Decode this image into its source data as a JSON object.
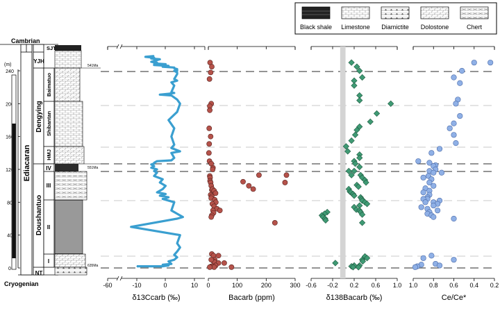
{
  "legend": {
    "items": [
      {
        "label": "Black shale",
        "pattern": "black-shale"
      },
      {
        "label": "Limestone",
        "pattern": "limestone"
      },
      {
        "label": "Diamictite",
        "pattern": "diamictite"
      },
      {
        "label": "Dolostone",
        "pattern": "dolostone"
      },
      {
        "label": "Chert",
        "pattern": "chert"
      }
    ]
  },
  "strat": {
    "periods": {
      "top": "Cambrian",
      "main": "Ediacaran",
      "bottom": "Cryogenian"
    },
    "formations": [
      "SJT",
      "YJH",
      "Dengying",
      "Doushantuo",
      "NT"
    ],
    "members": [
      "Baimatuo",
      "Shibantan",
      "HMJ",
      "IV",
      "III",
      "II",
      "I"
    ],
    "ages": [
      "541Ma",
      "551Ma",
      "635Ma"
    ],
    "height_unit": "(m)",
    "height_ticks": [
      "0",
      "40",
      "80",
      "120",
      "160",
      "200",
      "240"
    ]
  },
  "colors": {
    "carbon": "#3a9fd0",
    "ba": "#b5524a",
    "ba138": "#3f9a74",
    "ce": "#8fb0e6",
    "band": "#d4d4d4"
  },
  "chart_data": [
    {
      "type": "line",
      "xlabel": "δ13Ccarb (‰)",
      "xlim": [
        -60,
        10
      ],
      "axis_break": true,
      "xticks": [
        "-60",
        "-10",
        "0",
        "10"
      ],
      "ylim": [
        0,
        250
      ],
      "x": [
        -10,
        -8,
        -6,
        -3,
        -1,
        1,
        -1,
        2,
        1,
        3,
        4,
        3,
        4,
        5,
        4,
        5,
        -12,
        4,
        6,
        2,
        3,
        -1,
        1,
        -2,
        0,
        -3,
        -1,
        0,
        -2,
        -1,
        -4,
        -3,
        -4,
        -3,
        -5,
        -4,
        -5,
        -4,
        -4,
        -3,
        2,
        3,
        2,
        5,
        2,
        3,
        2,
        3,
        1,
        4,
        5,
        4,
        2,
        -2,
        1,
        3,
        2,
        3,
        2,
        4,
        3,
        4,
        4,
        3,
        4,
        4,
        3,
        3,
        -1,
        1,
        -4,
        0,
        -4,
        -3,
        -5,
        -4,
        -3,
        -2,
        -5,
        -4,
        -7,
        -4
      ],
      "y": [
        2,
        2,
        2,
        2,
        2,
        3,
        4,
        5,
        8,
        10,
        13,
        16,
        20,
        25,
        30,
        40,
        50,
        60,
        62,
        70,
        80,
        84,
        86,
        88,
        90,
        92,
        96,
        100,
        104,
        108,
        112,
        116,
        118,
        120,
        122,
        124,
        126,
        127,
        128,
        130,
        131,
        134,
        140,
        142,
        146,
        150,
        160,
        170,
        180,
        190,
        200,
        205,
        210,
        211,
        212,
        213,
        214,
        222,
        226,
        228,
        230,
        236,
        238,
        240,
        240,
        242,
        243,
        244,
        245,
        246,
        247,
        248,
        249,
        250,
        251,
        252,
        253,
        254,
        255,
        256,
        257,
        258
      ]
    },
    {
      "type": "scatter",
      "xlabel": "Bacarb (ppm)",
      "xlim": [
        0,
        300
      ],
      "xticks": [
        "0",
        "100",
        "200",
        "300"
      ],
      "x": [
        6,
        12,
        8,
        4,
        10,
        5,
        5,
        3,
        8,
        3,
        2,
        4,
        10,
        16,
        5,
        6,
        6,
        8,
        10,
        12,
        14,
        20,
        25,
        8,
        12,
        10,
        22,
        26,
        14,
        20,
        30,
        40,
        16,
        18,
        12,
        10,
        120,
        140,
        155,
        175,
        265,
        270,
        15,
        230,
        12,
        18,
        22,
        18,
        22,
        35,
        55,
        25,
        25,
        10,
        15,
        20,
        5,
        80,
        35,
        10
      ],
      "y": [
        250,
        245,
        238,
        230,
        200,
        197,
        192,
        170,
        160,
        151,
        140,
        130,
        127,
        122,
        112,
        110,
        106,
        104,
        100,
        95,
        96,
        94,
        91,
        89,
        87,
        85,
        83,
        80,
        78,
        75,
        72,
        70,
        70,
        67,
        64,
        62,
        105,
        100,
        96,
        113,
        104,
        113,
        120,
        55,
        17,
        15,
        10,
        8,
        7,
        6,
        6,
        3,
        3,
        2,
        2,
        1,
        1,
        1,
        15,
        10
      ]
    },
    {
      "type": "scatter",
      "xlabel": "δ138Bacarb (‰)",
      "xlim": [
        -0.6,
        1.0
      ],
      "xticks": [
        "-0.6",
        "-0.2",
        "0.2",
        "0.6",
        "1.0"
      ],
      "band_x": [
        -0.06,
        0.04
      ],
      "x": [
        0.15,
        0.25,
        0.3,
        0.35,
        0.2,
        0.2,
        0.3,
        0.3,
        0.88,
        0.62,
        0.5,
        0.3,
        0.25,
        0.22,
        0.15,
        0.05,
        0.08,
        0.3,
        0.3,
        0.2,
        0.22,
        0.3,
        0.1,
        0.15,
        0.2,
        0.32,
        0.35,
        0.4,
        0.42,
        0.25,
        0.28,
        0.1,
        0.12,
        0.14,
        0.18,
        0.2,
        0.32,
        0.34,
        0.35,
        0.4,
        0.44,
        0.3,
        0.2,
        0.24,
        0.3,
        0.32,
        0.35,
        -0.3,
        -0.35,
        -0.4,
        -0.38,
        -0.34,
        -0.33,
        0.35,
        0.4,
        0.44,
        0.35,
        0.36,
        -0.15,
        0.3,
        0.2,
        0.15,
        0.18,
        0.28
      ],
      "y": [
        250,
        245,
        240,
        232,
        228,
        222,
        210,
        204,
        200,
        188,
        178,
        172,
        168,
        162,
        155,
        148,
        142,
        138,
        134,
        130,
        127,
        123,
        118,
        113,
        118,
        113,
        110,
        107,
        104,
        101,
        99,
        96,
        93,
        92,
        90,
        88,
        86,
        84,
        82,
        80,
        78,
        76,
        74,
        71,
        70,
        68,
        65,
        68,
        66,
        64,
        62,
        60,
        58,
        55,
        14,
        12,
        10,
        8,
        6,
        3,
        3,
        2,
        1,
        1
      ]
    },
    {
      "type": "scatter",
      "xlabel": "Ce/Ce*",
      "xlim": [
        0.2,
        1.0
      ],
      "xticks": [
        "1.0",
        "0.8",
        "0.6",
        "0.4",
        "0.2"
      ],
      "x_reversed": true,
      "x": [
        0.24,
        0.4,
        0.52,
        0.6,
        0.54,
        0.56,
        0.58,
        0.54,
        0.6,
        0.64,
        0.6,
        0.58,
        0.74,
        0.82,
        0.95,
        0.84,
        0.78,
        0.8,
        0.78,
        0.72,
        0.84,
        0.8,
        0.85,
        0.9,
        0.82,
        0.84,
        0.8,
        0.88,
        0.84,
        0.9,
        0.84,
        0.86,
        0.86,
        0.9,
        0.74,
        0.8,
        0.88,
        0.76,
        0.8,
        0.92,
        0.86,
        0.76,
        0.84,
        0.86,
        0.82,
        0.8,
        0.6,
        0.82,
        0.9,
        0.6,
        0.92,
        0.96,
        0.98,
        0.78,
        0.74
      ],
      "y": [
        250,
        250,
        240,
        232,
        225,
        205,
        200,
        185,
        176,
        170,
        162,
        152,
        145,
        140,
        130,
        128,
        125,
        124,
        120,
        116,
        118,
        116,
        112,
        110,
        108,
        104,
        100,
        97,
        94,
        92,
        89,
        86,
        84,
        84,
        82,
        80,
        80,
        78,
        76,
        74,
        72,
        70,
        68,
        66,
        64,
        62,
        60,
        15,
        12,
        10,
        4,
        2,
        1,
        5,
        3
      ]
    }
  ]
}
